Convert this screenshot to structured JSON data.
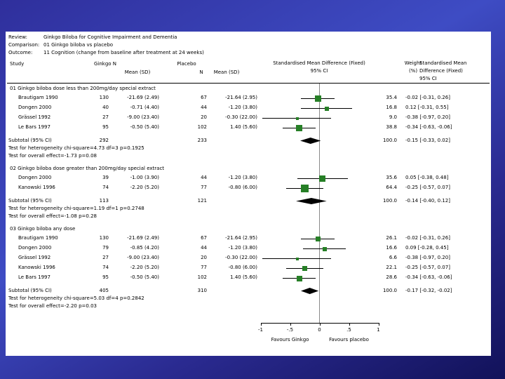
{
  "header": {
    "review_label": "Review:",
    "review_value": "Ginkgo Biloba for Cognitive Impairment and Dementia",
    "comparison_label": "Comparison:",
    "comparison_value": "01 Ginkgo biloba vs placebo",
    "outcome_label": "Outcome:",
    "outcome_value": "11 Cognition (change from baseline after treatment at 24 weeks)"
  },
  "columns": {
    "study": "Study",
    "ginkgo_n": "Ginkgo N",
    "ginkgo_mean": "Mean (SD)",
    "placebo": "Placebo",
    "placebo_n": "N",
    "placebo_mean": "Mean (SD)",
    "smd_plot_line1": "Standardised Mean Difference (Fixed)",
    "smd_plot_line2": "95% CI",
    "weight_line1": "Weight",
    "weight_line2": "(%)",
    "smd_text_line1": "Standardised Mean",
    "smd_text_line2": "Difference (Fixed)",
    "smd_text_line3": "95% CI"
  },
  "chart_data": {
    "type": "forest",
    "effect_measure": "Standardised Mean Difference (Fixed) 95% CI",
    "marker_color": "#267f26",
    "diamond_color": "#000000",
    "x_axis": {
      "xlim": [
        -1,
        1
      ],
      "ticks": [
        -1,
        -0.5,
        0,
        0.5,
        1
      ],
      "tick_labels": [
        "-1",
        "-.5",
        "0",
        ".5",
        "1"
      ],
      "favours_left": "Favours Ginkgo",
      "favours_right": "Favours placebo"
    },
    "subgroups": [
      {
        "label": "01 Ginkgo biloba dose less than 200mg/day special extract",
        "studies": [
          {
            "name": "Brautigam 1990",
            "ginkgo_n": "130",
            "ginkgo_mean_sd": "-21.69 (2.49)",
            "placebo_n": "67",
            "placebo_mean_sd": "-21.64 (2.95)",
            "weight": "35.4",
            "smd": -0.02,
            "ci_low": -0.31,
            "ci_high": 0.26,
            "smd_text": "-0.02 [-0.31, 0.26]"
          },
          {
            "name": "Dongen 2000",
            "ginkgo_n": "40",
            "ginkgo_mean_sd": "-0.71 (4.40)",
            "placebo_n": "44",
            "placebo_mean_sd": "-1.20 (3.80)",
            "weight": "16.8",
            "smd": 0.12,
            "ci_low": -0.31,
            "ci_high": 0.55,
            "smd_text": "0.12 [-0.31, 0.55]"
          },
          {
            "name": "Grässel 1992",
            "ginkgo_n": "27",
            "ginkgo_mean_sd": "-9.00 (23.40)",
            "placebo_n": "20",
            "placebo_mean_sd": "-0.30 (22.00)",
            "weight": "9.0",
            "smd": -0.38,
            "ci_low": -0.97,
            "ci_high": 0.2,
            "smd_text": "-0.38 [-0.97, 0.20]"
          },
          {
            "name": "Le Bars 1997",
            "ginkgo_n": "95",
            "ginkgo_mean_sd": "-0.50 (5.40)",
            "placebo_n": "102",
            "placebo_mean_sd": "1.40 (5.60)",
            "weight": "38.8",
            "smd": -0.34,
            "ci_low": -0.63,
            "ci_high": -0.06,
            "smd_text": "-0.34 [-0.63, -0.06]"
          }
        ],
        "subtotal": {
          "label": "Subtotal (95% CI)",
          "ginkgo_n": "292",
          "placebo_n": "233",
          "weight": "100.0",
          "smd": -0.15,
          "ci_low": -0.33,
          "ci_high": 0.02,
          "smd_text": "-0.15 [-0.33, 0.02]"
        },
        "heterogeneity_text": "Test for heterogeneity chi-square=4.73 df=3 p=0.1925",
        "overall_effect_text": "Test for overall effect=-1.73 p=0.08"
      },
      {
        "label": "02 Ginkgo biloba dose greater than 200mg/day special extract",
        "studies": [
          {
            "name": "Dongen 2000",
            "ginkgo_n": "39",
            "ginkgo_mean_sd": "-1.00 (3.90)",
            "placebo_n": "44",
            "placebo_mean_sd": "-1.20 (3.80)",
            "weight": "35.6",
            "smd": 0.05,
            "ci_low": -0.38,
            "ci_high": 0.48,
            "smd_text": "0.05 [-0.38, 0.48]"
          },
          {
            "name": "Kanowski 1996",
            "ginkgo_n": "74",
            "ginkgo_mean_sd": "-2.20 (5.20)",
            "placebo_n": "77",
            "placebo_mean_sd": "-0.80 (6.00)",
            "weight": "64.4",
            "smd": -0.25,
            "ci_low": -0.57,
            "ci_high": 0.07,
            "smd_text": "-0.25 [-0.57, 0.07]"
          }
        ],
        "subtotal": {
          "label": "Subtotal (95% CI)",
          "ginkgo_n": "113",
          "placebo_n": "121",
          "weight": "100.0",
          "smd": -0.14,
          "ci_low": -0.4,
          "ci_high": 0.12,
          "smd_text": "-0.14 [-0.40, 0.12]"
        },
        "heterogeneity_text": "Test for heterogeneity chi-square=1.19 df=1 p=0.2748",
        "overall_effect_text": "Test for overall effect=-1.08 p=0.28"
      },
      {
        "label": "03 Ginkgo biloba any dose",
        "studies": [
          {
            "name": "Brautigam 1990",
            "ginkgo_n": "130",
            "ginkgo_mean_sd": "-21.69 (2.49)",
            "placebo_n": "67",
            "placebo_mean_sd": "-21.64 (2.95)",
            "weight": "26.1",
            "smd": -0.02,
            "ci_low": -0.31,
            "ci_high": 0.26,
            "smd_text": "-0.02 [-0.31, 0.26]"
          },
          {
            "name": "Dongen 2000",
            "ginkgo_n": "79",
            "ginkgo_mean_sd": "-0.85 (4.20)",
            "placebo_n": "44",
            "placebo_mean_sd": "-1.20 (3.80)",
            "weight": "16.6",
            "smd": 0.09,
            "ci_low": -0.28,
            "ci_high": 0.45,
            "smd_text": "0.09 [-0.28, 0.45]"
          },
          {
            "name": "Grässel 1992",
            "ginkgo_n": "27",
            "ginkgo_mean_sd": "-9.00 (23.40)",
            "placebo_n": "20",
            "placebo_mean_sd": "-0.30 (22.00)",
            "weight": "6.6",
            "smd": -0.38,
            "ci_low": -0.97,
            "ci_high": 0.2,
            "smd_text": "-0.38 [-0.97, 0.20]"
          },
          {
            "name": "Kanowski 1996",
            "ginkgo_n": "74",
            "ginkgo_mean_sd": "-2.20 (5.20)",
            "placebo_n": "77",
            "placebo_mean_sd": "-0.80 (6.00)",
            "weight": "22.1",
            "smd": -0.25,
            "ci_low": -0.57,
            "ci_high": 0.07,
            "smd_text": "-0.25 [-0.57, 0.07]"
          },
          {
            "name": "Le Bars 1997",
            "ginkgo_n": "95",
            "ginkgo_mean_sd": "-0.50 (5.40)",
            "placebo_n": "102",
            "placebo_mean_sd": "1.40 (5.60)",
            "weight": "28.6",
            "smd": -0.34,
            "ci_low": -0.63,
            "ci_high": -0.06,
            "smd_text": "-0.34 [-0.63, -0.06]"
          }
        ],
        "subtotal": {
          "label": "Subtotal (95% CI)",
          "ginkgo_n": "405",
          "placebo_n": "310",
          "weight": "100.0",
          "smd": -0.17,
          "ci_low": -0.32,
          "ci_high": -0.02,
          "smd_text": "-0.17 [-0.32, -0.02]"
        },
        "heterogeneity_text": "Test for heterogeneity chi-square=5.03 df=4 p=0.2842",
        "overall_effect_text": "Test for overall effect=-2.20 p=0.03"
      }
    ]
  }
}
